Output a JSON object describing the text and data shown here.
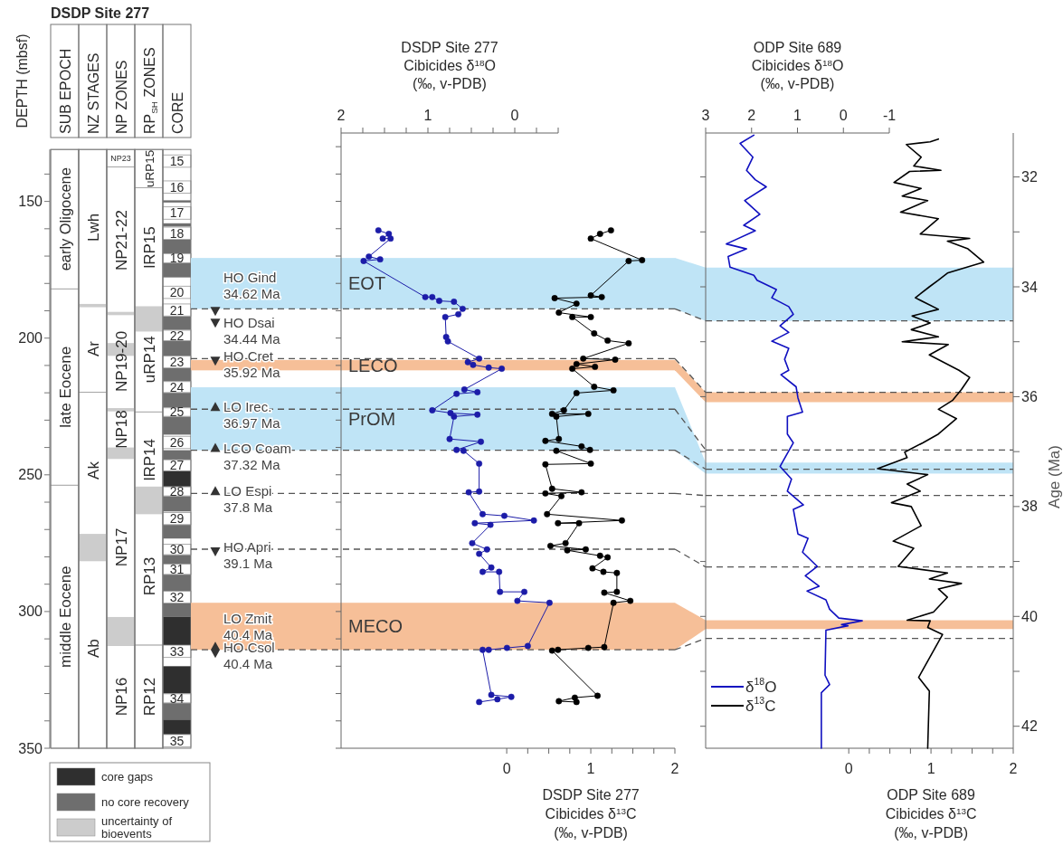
{
  "chart_data": [
    {
      "type": "bar",
      "title": "DSDP Site 277",
      "ylabel": "DEPTH (mbsf)",
      "categories": [
        "SUB EPOCH",
        "NZ STAGES",
        "NP ZONES",
        "RP$_{SH}$ ZONES",
        "CORE"
      ],
      "ylim": [
        350,
        131
      ],
      "legend": "bottom",
      "yticks": [
        {
          "value": 140,
          "label": null
        },
        150,
        {
          "value": 160,
          "label": null
        },
        {
          "value": 170,
          "label": null
        },
        {
          "value": 180,
          "label": null
        },
        {
          "value": 190,
          "label": null
        },
        200,
        {
          "value": 210,
          "label": null
        },
        {
          "value": 220,
          "label": null
        },
        {
          "value": 230,
          "label": null
        },
        {
          "value": 240,
          "label": null
        },
        250,
        {
          "value": 260,
          "label": null
        },
        {
          "value": 270,
          "label": null
        },
        {
          "value": 280,
          "label": null
        },
        {
          "value": 290,
          "label": null
        },
        300,
        {
          "value": 310,
          "label": null
        },
        {
          "value": 320,
          "label": null
        },
        {
          "value": 330,
          "label": null
        },
        {
          "value": 340,
          "label": null
        },
        350
      ],
      "series": [
        {
          "color": "#ffffff",
          "x": [
            "SUB EPOCH",
            "SUB EPOCH",
            "SUB EPOCH",
            "NZ STAGES",
            "NZ STAGES",
            "NZ STAGES",
            "NZ STAGES",
            "NP ZONES",
            "NP ZONES",
            "NP ZONES",
            "NP ZONES",
            "NP ZONES",
            "NP ZONES",
            "RP$_{SH}$ ZONES",
            "RP$_{SH}$ ZONES",
            "RP$_{SH}$ ZONES",
            "RP$_{SH}$ ZONES",
            "RP$_{SH}$ ZONES",
            "RP$_{SH}$ ZONES"
          ],
          "base": [
            131,
            182,
            253.8,
            131,
            188,
            219.8,
            277,
            131,
            137.4,
            191,
            226,
            240.7,
            312.3,
            131,
            145,
            188.6,
            227,
            262,
            312.3
          ],
          "values": [
            51,
            71.8,
            96.2,
            57,
            31.8,
            57.2,
            73,
            6.4,
            53.6,
            35,
            14.7,
            71.6,
            37.7,
            14,
            43.6,
            38.4,
            35,
            50.3,
            37.7
          ],
          "value_labels": [
            "early Oligocene",
            "late Eocene",
            "middle Eocene",
            "Lwh",
            "Ar",
            "Ak",
            "Ab",
            "NP23",
            "NP21-22",
            "NP19-20",
            "NP18",
            "NP17",
            "NP16",
            "uRP15",
            "lRP15",
            "uRP14",
            "lRP14",
            "RP13",
            "RP12"
          ]
        },
        {
          "name": "core gaps",
          "color": "#2f2f2f",
          "x": [
            "CORE",
            "CORE",
            "CORE",
            "CORE"
          ],
          "base": [
            248.5,
            302,
            320,
            339.5
          ],
          "values": [
            5.8,
            10.3,
            10,
            5.5
          ]
        },
        {
          "name": "no core recovery",
          "color": "#6e6e6e",
          "x": [
            "CORE",
            "CORE",
            "CORE",
            "CORE",
            "CORE",
            "CORE",
            "CORE",
            "CORE",
            "CORE",
            "CORE",
            "CORE",
            "CORE",
            "CORE",
            "CORE",
            "CORE",
            "CORE"
          ],
          "base": [
            149.6,
            158,
            164,
            172.5,
            192,
            201,
            211,
            220,
            228.7,
            241,
            257.8,
            268.3,
            279.3,
            286.5,
            297,
            333.5
          ],
          "values": [
            0.8,
            1.2,
            5,
            5.3,
            5,
            5.5,
            4.8,
            5.4,
            6.6,
            3.5,
            5.6,
            5,
            3.3,
            6,
            5,
            6
          ]
        },
        {
          "name": "uncertainty of bioevents",
          "color": "#cccccc",
          "x": [
            "NZ STAGES",
            "NZ STAGES",
            "NP ZONES",
            "NP ZONES",
            "NP ZONES",
            "NP ZONES",
            "NP ZONES",
            "RP$_{SH}$ ZONES",
            "RP$_{SH}$ ZONES"
          ],
          "base": [
            187.5,
            271.6,
            190.4,
            201.8,
            225.6,
            240,
            302,
            188.5,
            254.3
          ],
          "values": [
            1.2,
            10,
            1.2,
            4.7,
            1.2,
            4.2,
            10.3,
            9.1,
            10.1
          ]
        },
        {
          "name": "15",
          "color": "#ffffff",
          "x": [
            "CORE"
          ],
          "base": [
            133
          ],
          "values": [
            4.5
          ]
        },
        {
          "name": "16",
          "color": "#ffffff",
          "x": [
            "CORE"
          ],
          "base": [
            142.5
          ],
          "values": [
            4.5
          ]
        },
        {
          "name": "17",
          "color": "#ffffff",
          "x": [
            "CORE"
          ],
          "base": [
            152
          ],
          "values": [
            4.5
          ]
        },
        {
          "name": "18",
          "color": "#ffffff",
          "x": [
            "CORE"
          ],
          "base": [
            159.4
          ],
          "values": [
            4.5
          ]
        },
        {
          "name": "19",
          "color": "#ffffff",
          "x": [
            "CORE"
          ],
          "base": [
            169.1
          ],
          "values": [
            3.3
          ]
        },
        {
          "name": "20",
          "color": "#ffffff",
          "x": [
            "CORE"
          ],
          "base": [
            181
          ],
          "values": [
            4.5
          ]
        },
        {
          "name": "21",
          "color": "#ffffff",
          "x": [
            "CORE"
          ],
          "base": [
            187.5
          ],
          "values": [
            4.4
          ]
        },
        {
          "name": "22",
          "color": "#ffffff",
          "x": [
            "CORE"
          ],
          "base": [
            197.1
          ],
          "values": [
            3.8
          ]
        },
        {
          "name": "23",
          "color": "#ffffff",
          "x": [
            "CORE"
          ],
          "base": [
            206.6
          ],
          "values": [
            4.3
          ]
        },
        {
          "name": "24",
          "color": "#ffffff",
          "x": [
            "CORE"
          ],
          "base": [
            215.9
          ],
          "values": [
            4
          ]
        },
        {
          "name": "25",
          "color": "#ffffff",
          "x": [
            "CORE"
          ],
          "base": [
            225.5
          ],
          "values": [
            3.1
          ]
        },
        {
          "name": "26",
          "color": "#ffffff",
          "x": [
            "CORE"
          ],
          "base": [
            235.9
          ],
          "values": [
            4.5
          ]
        },
        {
          "name": "27",
          "color": "#ffffff",
          "x": [
            "CORE"
          ],
          "base": [
            244.5
          ],
          "values": [
            4
          ]
        },
        {
          "name": "28",
          "color": "#ffffff",
          "x": [
            "CORE"
          ],
          "base": [
            254.4
          ],
          "values": [
            3.3
          ]
        },
        {
          "name": "29",
          "color": "#ffffff",
          "x": [
            "CORE"
          ],
          "base": [
            263.8
          ],
          "values": [
            4.4
          ]
        },
        {
          "name": "30",
          "color": "#ffffff",
          "x": [
            "CORE"
          ],
          "base": [
            275.4
          ],
          "values": [
            3.8
          ]
        },
        {
          "name": "31",
          "color": "#ffffff",
          "x": [
            "CORE"
          ],
          "base": [
            282.7
          ],
          "values": [
            3.7
          ]
        },
        {
          "name": "32",
          "color": "#ffffff",
          "x": [
            "CORE"
          ],
          "base": [
            292.6
          ],
          "values": [
            4.3
          ]
        },
        {
          "name": "33",
          "color": "#ffffff",
          "x": [
            "CORE"
          ],
          "base": [
            312.3
          ],
          "values": [
            4.5
          ]
        },
        {
          "name": "34",
          "color": "#ffffff",
          "x": [
            "CORE"
          ],
          "base": [
            330.1
          ],
          "values": [
            3.3
          ]
        },
        {
          "name": "35",
          "color": "#ffffff",
          "x": [
            "CORE"
          ],
          "base": [
            345
          ],
          "values": [
            4.5
          ]
        }
      ]
    },
    {
      "type": "line",
      "marker": "circle",
      "tick_labels": "x",
      "x2label": "DSDP Site 277\nCibicides δ$^{18}$O\n(‰, v-PDB)",
      "xlabel": "DSDP Site 277\nCibicides δ$^{13}$C\n(‰, v-PDB)",
      "x2lim": [
        2,
        -0.5
      ],
      "x2ticks": [
        2,
        {
          "value": 1.75,
          "label": null
        },
        {
          "value": 1.5,
          "label": null
        },
        {
          "value": 1.25,
          "label": null
        },
        1,
        {
          "value": 0.75,
          "label": null
        },
        {
          "value": 0.5,
          "label": null
        },
        {
          "value": 0.25,
          "label": null
        },
        0,
        {
          "value": -0.25,
          "label": null
        },
        {
          "value": -0.5,
          "label": null
        }
      ],
      "xlim": [
        -1.97,
        2
      ],
      "xticks": [
        0,
        {
          "value": 0.25,
          "label": null
        },
        {
          "value": 0.5,
          "label": null
        },
        {
          "value": 0.75,
          "label": null
        },
        1,
        {
          "value": 1.25,
          "label": null
        },
        {
          "value": 1.5,
          "label": null
        },
        {
          "value": 1.75,
          "label": null
        },
        2
      ],
      "ylim": [
        350,
        125
      ],
      "yticks": [
        {
          "value": 130,
          "label": null
        },
        {
          "value": 140,
          "label": null
        },
        150,
        {
          "value": 160,
          "label": null
        },
        {
          "value": 170,
          "label": null
        },
        {
          "value": 180,
          "label": null
        },
        {
          "value": 190,
          "label": null
        },
        200,
        {
          "value": 210,
          "label": null
        },
        {
          "value": 220,
          "label": null
        },
        {
          "value": 230,
          "label": null
        },
        {
          "value": 240,
          "label": null
        },
        250,
        {
          "value": 260,
          "label": null
        },
        {
          "value": 270,
          "label": null
        },
        {
          "value": 280,
          "label": null
        },
        {
          "value": 290,
          "label": null
        },
        300,
        {
          "value": 310,
          "label": null
        },
        {
          "value": 320,
          "label": null
        },
        {
          "value": 330,
          "label": null
        },
        {
          "value": 340,
          "label": null
        },
        350
      ],
      "bands": [
        {
          "axis": "y",
          "from": 170.7,
          "to": 189.3,
          "label": "EOT",
          "color": "#bfe4f6"
        },
        {
          "axis": "y",
          "from": 208,
          "to": 211.8,
          "label": "LECO",
          "color": "#f6bf98"
        },
        {
          "axis": "y",
          "from": 218,
          "to": 241,
          "label": "PrOM",
          "color": "#bfe4f6"
        },
        {
          "axis": "y",
          "from": 296.8,
          "to": 314,
          "label": "MECO",
          "color": "#f6bf98"
        }
      ],
      "ref_lines": [
        {
          "axis": "y",
          "value": 189.3,
          "label": "HO Gind\n34.62 Ma",
          "line_style": "dashed",
          "color": "#555555"
        },
        {
          "axis": "y",
          "value": 207.5,
          "label": "HO Cret\n35.92 Ma",
          "line_style": "dashed",
          "color": "#555555"
        },
        {
          "axis": "y",
          "value": 226,
          "label": "LO Irec.\n36.97 Ma",
          "line_style": "dashed",
          "color": "#555555"
        },
        {
          "axis": "y",
          "value": 241,
          "label": "LCO Coam\n37.32 Ma",
          "line_style": "dashed",
          "color": "#555555"
        },
        {
          "axis": "y",
          "value": 256.8,
          "label": "LO Espi\n37.8 Ma",
          "line_style": "dashed",
          "color": "#555555"
        },
        {
          "axis": "y",
          "value": 277.2,
          "label": "HO Apri\n39.1 Ma",
          "line_style": "dashed",
          "color": "#555555"
        },
        {
          "axis": "y",
          "value": 314,
          "label": "HO Csol\n40.4 Ma",
          "line_style": "dashed",
          "color": "#555555"
        }
      ],
      "annotations": [
        "HO Dsai\n34.44 Ma",
        "LO Zmit\n40.4 Ma"
      ],
      "series": [
        {
          "type": "line",
          "axis": "x2",
          "color": "#1c1ca8",
          "values": [
            160.6,
            161.9,
            163.6,
            163.6,
            170.2,
            171.2,
            171.8,
            185.0,
            185.0,
            186.4,
            186.7,
            189.3,
            191.3,
            192.3,
            199.6,
            201.2,
            207.5,
            208.8,
            209.8,
            210.8,
            211.2,
            218.8,
            219.8,
            220.4,
            226.4,
            227.4,
            228.0,
            228.7,
            236.9,
            237.9,
            240.9,
            241.2,
            245.9,
            256.1,
            256.4,
            264.4,
            265.0,
            266.7,
            267.7,
            268.3,
            275.0,
            277.3,
            278.9,
            283.9,
            285.5,
            285.5,
            292.8,
            292.8,
            296.1,
            296.8,
            312.6,
            313.3,
            314.0,
            314.0,
            330.5,
            331.2,
            332.1,
            333.1
          ],
          "x": [
            1.57,
            1.45,
            1.52,
            1.43,
            1.68,
            1.55,
            1.74,
            1.03,
            0.95,
            0.87,
            0.7,
            0.6,
            0.65,
            0.8,
            0.79,
            0.77,
            0.41,
            0.54,
            0.48,
            0.3,
            0.15,
            0.58,
            0.43,
            0.67,
            0.95,
            0.74,
            0.43,
            0.7,
            0.75,
            0.39,
            0.67,
            0.59,
            0.41,
            0.41,
            0.53,
            0.37,
            0.12,
            -0.22,
            0.46,
            0.28,
            0.49,
            0.32,
            0.41,
            0.27,
            0.37,
            0.18,
            0.17,
            -0.11,
            -0.03,
            -0.4,
            -0.15,
            0.09,
            0.3,
            0.37,
            0.27,
            0.04,
            0.2,
            0.41
          ]
        },
        {
          "type": "line",
          "color": "#000000",
          "values": [
            160.6,
            161.9,
            163.6,
            171.5,
            171.8,
            184.4,
            185.0,
            185.4,
            187.4,
            190.7,
            192.3,
            192.3,
            198.3,
            200.9,
            201.9,
            207.5,
            207.9,
            209.5,
            210.5,
            211.2,
            217.8,
            219.1,
            220.1,
            226.4,
            227.7,
            227.7,
            228.7,
            236.9,
            237.6,
            239.6,
            240.9,
            241.2,
            245.9,
            246.2,
            255.1,
            256.4,
            256.8,
            257.8,
            264.4,
            266.7,
            267.7,
            267.7,
            275.0,
            276.0,
            277.3,
            277.6,
            279.6,
            280.2,
            284.2,
            285.5,
            285.9,
            292.8,
            293.1,
            296.1,
            296.8,
            313.0,
            313.3,
            314.0,
            314.3,
            330.8,
            331.5,
            332.8,
            333.1
          ],
          "x": [
            1.24,
            1.11,
            1.0,
            1.61,
            1.45,
            1.0,
            1.13,
            0.57,
            0.83,
            0.62,
            1.0,
            0.78,
            1.04,
            1.2,
            1.45,
            0.91,
            1.29,
            0.83,
            1.05,
            0.78,
            1.04,
            1.27,
            0.83,
            0.68,
            0.54,
            0.97,
            0.59,
            0.62,
            0.46,
            0.89,
            0.99,
            0.59,
            1.0,
            0.46,
            0.54,
            0.89,
            0.46,
            0.65,
            0.48,
            1.37,
            0.61,
            0.86,
            0.7,
            0.52,
            0.94,
            0.72,
            1.11,
            1.2,
            1.02,
            1.15,
            1.31,
            1.31,
            1.16,
            1.47,
            1.27,
            1.16,
            0.97,
            0.61,
            0.54,
            1.08,
            0.81,
            0.62,
            0.83
          ]
        }
      ]
    },
    {
      "type": "line",
      "legend": "bottom left",
      "x2label": "ODP Site 689\nCibicides δ$^{18}$O\n(‰, v-PDB)",
      "xlabel": "ODP Site 689\nCibicides δ$^{13}$C\n(‰, v-PDB)",
      "ylabel": "Age (Ma)",
      "x2lim": [
        3,
        -1
      ],
      "x2ticks": [
        3,
        2,
        1,
        0,
        -1
      ],
      "xlim": [
        -1.74,
        2
      ],
      "xticks": [
        0,
        {
          "value": 0.25,
          "label": null
        },
        {
          "value": 0.5,
          "label": null
        },
        {
          "value": 0.75,
          "label": null
        },
        1,
        {
          "value": 1.25,
          "label": null
        },
        {
          "value": 1.5,
          "label": null
        },
        {
          "value": 1.75,
          "label": null
        },
        2
      ],
      "ylim": [
        42.4,
        31.2
      ],
      "yticks": [
        32,
        {
          "value": 33,
          "label": null
        },
        34,
        {
          "value": 35,
          "label": null
        },
        36,
        {
          "value": 37,
          "label": null
        },
        38,
        {
          "value": 39,
          "label": null
        },
        40,
        {
          "value": 41,
          "label": null
        },
        42
      ],
      "bands": [
        {
          "axis": "y",
          "from": 33.65,
          "to": 34.62,
          "color": "#bfe4f6"
        },
        {
          "axis": "y",
          "from": 35.92,
          "to": 36.1,
          "color": "#f6bf98"
        },
        {
          "axis": "y",
          "from": 37.2,
          "to": 37.4,
          "color": "#bfe4f6"
        },
        {
          "axis": "y",
          "from": 40.07,
          "to": 40.23,
          "color": "#f6bf98"
        }
      ],
      "ref_lines": [
        {
          "axis": "y",
          "value": 34.62,
          "line_style": "dashed",
          "color": "#555555"
        },
        {
          "axis": "y",
          "value": 35.92,
          "line_style": "dashed",
          "color": "#555555"
        },
        {
          "axis": "y",
          "value": 36.97,
          "line_style": "dashed",
          "color": "#555555"
        },
        {
          "axis": "y",
          "value": 37.32,
          "line_style": "dashed",
          "color": "#555555"
        },
        {
          "axis": "y",
          "value": 37.8,
          "line_style": "dashed",
          "color": "#555555"
        },
        {
          "axis": "y",
          "value": 39.1,
          "line_style": "dashed",
          "color": "#555555"
        },
        {
          "axis": "y",
          "value": 40.4,
          "line_style": "dashed",
          "color": "#555555"
        }
      ],
      "series": [
        {
          "type": "line",
          "axis": "x2",
          "name": "δ$^{18}$O",
          "color": "#1010c0",
          "values": [
            31.24,
            31.39,
            31.64,
            31.88,
            32.05,
            32.18,
            32.43,
            32.68,
            32.88,
            32.98,
            33.22,
            33.31,
            33.45,
            33.64,
            33.79,
            33.88,
            34.05,
            34.2,
            34.36,
            34.5,
            34.71,
            34.83,
            34.99,
            35.12,
            35.32,
            35.52,
            35.6,
            35.82,
            36.02,
            36.28,
            36.36,
            36.68,
            36.84,
            37.27,
            37.5,
            37.72,
            37.97,
            38.05,
            38.5,
            38.58,
            38.83,
            39.09,
            39.26,
            39.45,
            39.54,
            39.7,
            39.87,
            40.03,
            40.08,
            40.15,
            40.17,
            40.25,
            41.07,
            41.24,
            41.39,
            42.4
          ],
          "x": [
            1.95,
            2.25,
            1.97,
            2.11,
            1.92,
            1.68,
            2.15,
            1.82,
            2.17,
            1.92,
            2.55,
            2.11,
            2.51,
            2.47,
            1.95,
            1.88,
            1.46,
            1.56,
            1.19,
            1.09,
            1.38,
            1.19,
            1.56,
            1.19,
            1.28,
            1.19,
            1.36,
            1.03,
            0.99,
            0.89,
            1.22,
            1.22,
            1.09,
            1.38,
            1.13,
            1.22,
            0.87,
            1.09,
            0.99,
            0.77,
            0.89,
            0.57,
            0.83,
            0.53,
            0.79,
            0.38,
            0.3,
            0.1,
            -0.41,
            0.04,
            -0.1,
            0.38,
            0.4,
            0.3,
            0.48,
            0.48
          ]
        },
        {
          "type": "line",
          "name": "δ$^{13}$C",
          "color": "#000000",
          "values": [
            31.31,
            31.36,
            31.41,
            31.64,
            31.8,
            31.88,
            31.9,
            32.1,
            32.21,
            32.35,
            32.43,
            32.64,
            32.76,
            33.04,
            33.12,
            33.17,
            33.31,
            33.55,
            33.75,
            33.88,
            34.0,
            34.2,
            34.41,
            34.53,
            34.66,
            34.78,
            34.91,
            35.0,
            35.05,
            35.24,
            35.52,
            35.65,
            35.87,
            36.07,
            36.23,
            36.4,
            36.68,
            36.84,
            37.01,
            37.11,
            37.31,
            37.42,
            37.59,
            37.72,
            37.93,
            38.0,
            38.35,
            38.63,
            38.76,
            39.09,
            39.21,
            39.32,
            39.4,
            39.5,
            39.65,
            39.92,
            40.07,
            40.08,
            40.2,
            40.33,
            41.11,
            41.36,
            42.4
          ],
          "x": [
            1.09,
            0.99,
            0.7,
            0.88,
            0.79,
            1.12,
            0.74,
            0.55,
            0.88,
            0.65,
            0.96,
            0.63,
            1.09,
            0.87,
            1.47,
            1.2,
            1.45,
            1.64,
            1.2,
            1.09,
            0.98,
            0.81,
            1.09,
            0.77,
            0.99,
            0.76,
            1.09,
            0.65,
            1.21,
            0.98,
            1.34,
            1.47,
            1.37,
            1.26,
            1.09,
            1.31,
            1.09,
            0.9,
            0.68,
            0.71,
            0.35,
            0.96,
            0.71,
            0.87,
            0.52,
            0.76,
            0.88,
            0.54,
            0.79,
            0.6,
            1.2,
            0.98,
            1.37,
            1.09,
            1.2,
            1.03,
            0.71,
            0.99,
            0.96,
            1.14,
            0.85,
            0.98,
            0.96
          ]
        }
      ]
    }
  ]
}
